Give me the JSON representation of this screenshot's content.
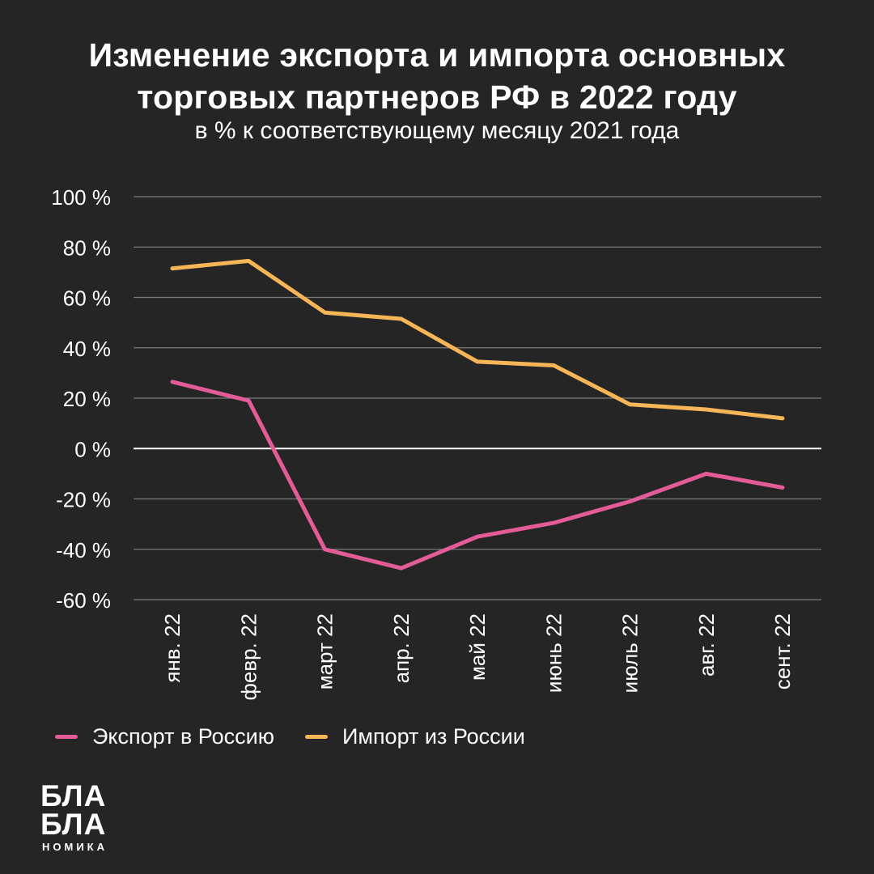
{
  "header": {
    "title_line1": "Изменение экспорта и импорта основных",
    "title_line2": "торговых партнеров РФ в 2022 году",
    "subtitle": "в % к соответствующему месяцу 2021 года"
  },
  "logo": {
    "line1": "БЛА",
    "line2": "БЛА",
    "line3": "НОМИКА"
  },
  "colors": {
    "background": "#262525",
    "grid": "#7a7a7a",
    "zero_line": "#ffffff",
    "export": "#e35b97",
    "import": "#f6b556",
    "text": "#ffffff"
  },
  "chart_data": {
    "type": "line",
    "title": "Изменение экспорта и импорта основных торговых партнеров РФ в 2022 году",
    "subtitle": "в % к соответствующему месяцу 2021 года",
    "xlabel": "",
    "ylabel": "",
    "ylim": [
      -60,
      100
    ],
    "yticks": [
      100,
      80,
      60,
      40,
      20,
      0,
      -20,
      -40,
      -60
    ],
    "ytick_labels": [
      "100 %",
      "80 %",
      "60 %",
      "40 %",
      "20 %",
      "0 %",
      "-20 %",
      "-40 %",
      "-60 %"
    ],
    "grid": true,
    "legend_position": "bottom-left",
    "categories": [
      "янв. 22",
      "февр. 22",
      "март 22",
      "апр. 22",
      "май 22",
      "июнь 22",
      "июль 22",
      "авг. 22",
      "сент. 22"
    ],
    "series": [
      {
        "name": "Экспорт в Россию",
        "color": "#e35b97",
        "values": [
          26.5,
          19,
          -40,
          -47.5,
          -35,
          -29.5,
          -21,
          -10,
          -15.5
        ]
      },
      {
        "name": "Импорт из России",
        "color": "#f6b556",
        "values": [
          71.5,
          74.5,
          54,
          51.5,
          34.5,
          33,
          17.5,
          15.5,
          12
        ]
      }
    ]
  }
}
